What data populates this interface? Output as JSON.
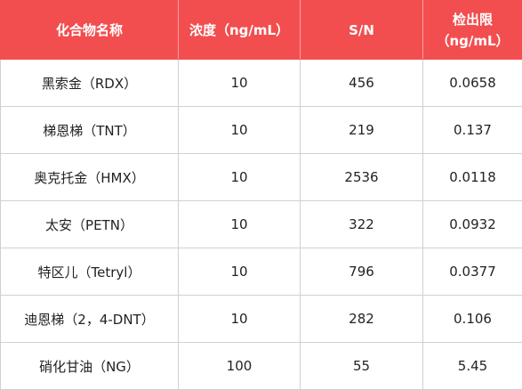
{
  "table": {
    "header": [
      "化合物名称",
      "浓度（ng/mL）",
      "S/N",
      "检出限\n（ng/mL）"
    ],
    "rows": [
      [
        "黑索金（RDX）",
        "10",
        "456",
        "0.0658"
      ],
      [
        "梯恩梯（TNT）",
        "10",
        "219",
        "0.137"
      ],
      [
        "奥克托金（HMX）",
        "10",
        "2536",
        "0.0118"
      ],
      [
        "太安（PETN）",
        "10",
        "322",
        "0.0932"
      ],
      [
        "特区儿（Tetryl）",
        "10",
        "796",
        "0.0377"
      ],
      [
        "迪恩梯（2，4-DNT）",
        "10",
        "282",
        "0.106"
      ],
      [
        "硝化甘油（NG）",
        "100",
        "55",
        "5.45"
      ]
    ]
  }
}
